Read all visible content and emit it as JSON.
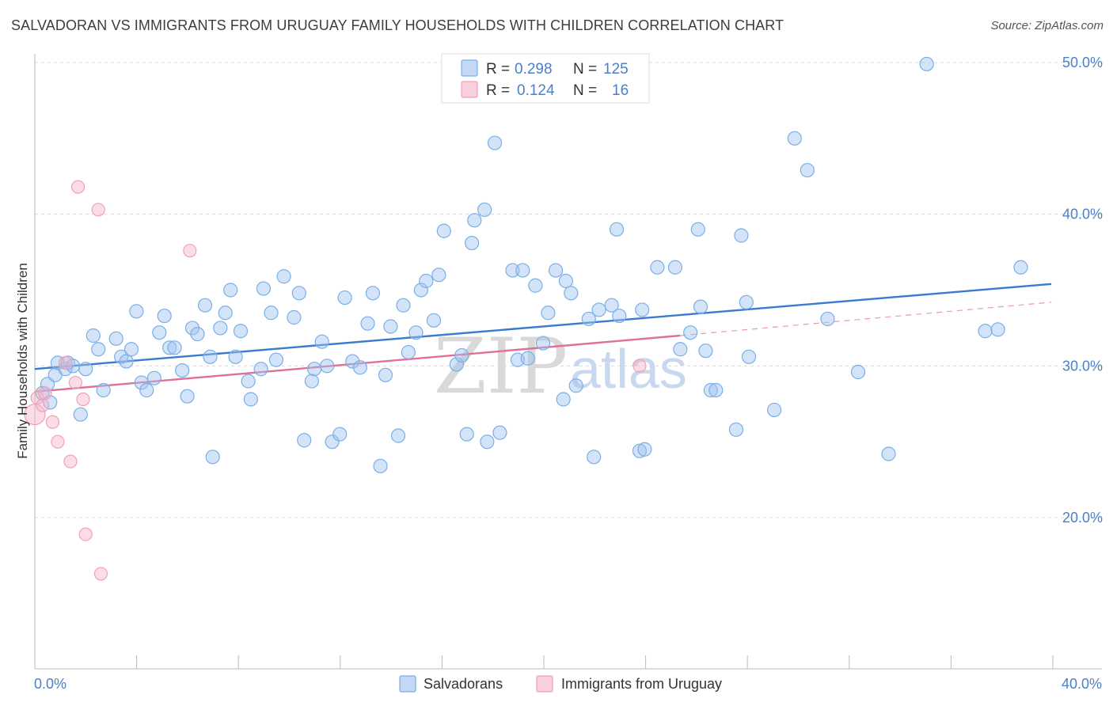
{
  "header": {
    "title": "SALVADORAN VS IMMIGRANTS FROM URUGUAY FAMILY HOUSEHOLDS WITH CHILDREN CORRELATION CHART",
    "source": "Source: ZipAtlas.com"
  },
  "watermark": {
    "zip": "ZIP",
    "atlas": "atlas"
  },
  "legend_top": [
    {
      "r_label": "R = ",
      "r_value": "0.298",
      "n_label": "N = ",
      "n_value": "125",
      "color": "#7aaee8"
    },
    {
      "r_label": "R = ",
      "r_value": "0.124",
      "n_label": "N = ",
      "n_value": "16",
      "color": "#f0a0b8"
    }
  ],
  "chart_data": {
    "type": "scatter",
    "title": "SALVADORAN VS IMMIGRANTS FROM URUGUAY FAMILY HOUSEHOLDS WITH CHILDREN CORRELATION CHART",
    "xlabel": "",
    "ylabel": "Family Households with Children",
    "xlim": [
      0,
      40
    ],
    "ylim": [
      10,
      52
    ],
    "x_tick_labels": [
      "0.0%",
      "40.0%"
    ],
    "y_ticks": [
      20,
      30,
      40,
      50
    ],
    "y_tick_labels": [
      "20.0%",
      "30.0%",
      "40.0%",
      "50.0%"
    ],
    "grid": true,
    "legend_position": "top-center",
    "series": [
      {
        "name": "Salvadorans",
        "color": "#7aaee8",
        "trend": {
          "x": [
            0,
            40
          ],
          "y": [
            29.8,
            35.4
          ]
        },
        "points": [
          [
            0.3,
            28.2
          ],
          [
            0.5,
            28.8
          ],
          [
            0.6,
            27.6
          ],
          [
            0.8,
            29.4
          ],
          [
            0.9,
            30.2
          ],
          [
            1.2,
            29.8
          ],
          [
            1.3,
            30.2
          ],
          [
            1.5,
            30.0
          ],
          [
            1.8,
            26.8
          ],
          [
            2.0,
            29.8
          ],
          [
            2.3,
            32.0
          ],
          [
            2.5,
            31.1
          ],
          [
            2.7,
            28.4
          ],
          [
            3.2,
            31.8
          ],
          [
            3.4,
            30.6
          ],
          [
            3.6,
            30.3
          ],
          [
            3.8,
            31.1
          ],
          [
            4.0,
            33.6
          ],
          [
            4.2,
            28.9
          ],
          [
            4.4,
            28.4
          ],
          [
            4.7,
            29.2
          ],
          [
            4.9,
            32.2
          ],
          [
            5.1,
            33.3
          ],
          [
            5.3,
            31.2
          ],
          [
            5.5,
            31.2
          ],
          [
            5.8,
            29.7
          ],
          [
            6.0,
            28.0
          ],
          [
            6.2,
            32.5
          ],
          [
            6.4,
            32.1
          ],
          [
            6.7,
            34.0
          ],
          [
            6.9,
            30.6
          ],
          [
            7.0,
            24.0
          ],
          [
            7.3,
            32.5
          ],
          [
            7.5,
            33.5
          ],
          [
            7.7,
            35.0
          ],
          [
            7.9,
            30.6
          ],
          [
            8.1,
            32.3
          ],
          [
            8.4,
            29.0
          ],
          [
            8.5,
            27.8
          ],
          [
            8.9,
            29.8
          ],
          [
            9.0,
            35.1
          ],
          [
            9.3,
            33.5
          ],
          [
            9.5,
            30.4
          ],
          [
            9.8,
            35.9
          ],
          [
            10.2,
            33.2
          ],
          [
            10.4,
            34.8
          ],
          [
            10.6,
            25.1
          ],
          [
            10.9,
            29.0
          ],
          [
            11.0,
            29.8
          ],
          [
            11.3,
            31.6
          ],
          [
            11.5,
            30.0
          ],
          [
            11.7,
            25.0
          ],
          [
            12.0,
            25.5
          ],
          [
            12.2,
            34.5
          ],
          [
            12.5,
            30.3
          ],
          [
            12.8,
            29.9
          ],
          [
            13.1,
            32.8
          ],
          [
            13.3,
            34.8
          ],
          [
            13.6,
            23.4
          ],
          [
            13.8,
            29.4
          ],
          [
            14.0,
            32.6
          ],
          [
            14.3,
            25.4
          ],
          [
            14.5,
            34.0
          ],
          [
            14.7,
            30.9
          ],
          [
            15.0,
            32.2
          ],
          [
            15.2,
            35.0
          ],
          [
            15.4,
            35.6
          ],
          [
            15.7,
            33.0
          ],
          [
            15.9,
            36.0
          ],
          [
            16.1,
            38.9
          ],
          [
            16.6,
            30.1
          ],
          [
            16.8,
            30.7
          ],
          [
            17.0,
            25.5
          ],
          [
            17.2,
            38.1
          ],
          [
            17.3,
            39.6
          ],
          [
            17.7,
            40.3
          ],
          [
            17.8,
            25.0
          ],
          [
            18.1,
            44.7
          ],
          [
            18.3,
            25.6
          ],
          [
            18.8,
            36.3
          ],
          [
            19.0,
            30.4
          ],
          [
            19.2,
            36.3
          ],
          [
            19.4,
            30.5
          ],
          [
            19.7,
            35.3
          ],
          [
            20.0,
            31.5
          ],
          [
            20.2,
            33.5
          ],
          [
            20.5,
            36.3
          ],
          [
            20.8,
            27.8
          ],
          [
            20.9,
            35.6
          ],
          [
            21.1,
            34.8
          ],
          [
            21.3,
            28.7
          ],
          [
            21.8,
            33.1
          ],
          [
            22.0,
            24.0
          ],
          [
            22.2,
            33.7
          ],
          [
            22.7,
            34.0
          ],
          [
            22.9,
            39.0
          ],
          [
            23.0,
            33.3
          ],
          [
            23.8,
            24.4
          ],
          [
            23.9,
            33.7
          ],
          [
            24.0,
            24.5
          ],
          [
            24.5,
            36.5
          ],
          [
            25.2,
            36.5
          ],
          [
            25.4,
            31.1
          ],
          [
            25.8,
            32.2
          ],
          [
            26.1,
            39.0
          ],
          [
            26.2,
            33.9
          ],
          [
            26.4,
            31.0
          ],
          [
            26.6,
            28.4
          ],
          [
            26.8,
            28.4
          ],
          [
            27.6,
            25.8
          ],
          [
            27.8,
            38.6
          ],
          [
            28.0,
            34.2
          ],
          [
            28.1,
            30.6
          ],
          [
            29.1,
            27.1
          ],
          [
            29.9,
            45.0
          ],
          [
            30.4,
            42.9
          ],
          [
            31.2,
            33.1
          ],
          [
            32.4,
            29.6
          ],
          [
            33.6,
            24.2
          ],
          [
            35.1,
            49.9
          ],
          [
            37.4,
            32.3
          ],
          [
            37.9,
            32.4
          ],
          [
            38.8,
            36.5
          ]
        ]
      },
      {
        "name": "Immigrants from Uruguay",
        "color": "#f0a0b8",
        "trend": {
          "x": [
            0,
            25.4
          ],
          "y": [
            28.3,
            32.0
          ]
        },
        "trend_extension": {
          "x": [
            25.4,
            40
          ],
          "y": [
            32.0,
            34.2
          ]
        },
        "points": [
          [
            0.0,
            26.8
          ],
          [
            0.1,
            27.9
          ],
          [
            0.3,
            27.4
          ],
          [
            0.4,
            28.2
          ],
          [
            0.7,
            26.3
          ],
          [
            0.9,
            25.0
          ],
          [
            1.2,
            30.2
          ],
          [
            1.4,
            23.7
          ],
          [
            1.6,
            28.9
          ],
          [
            1.9,
            27.8
          ],
          [
            1.7,
            41.8
          ],
          [
            2.0,
            18.9
          ],
          [
            2.5,
            40.3
          ],
          [
            2.6,
            16.3
          ],
          [
            6.1,
            37.6
          ],
          [
            23.8,
            30.0
          ]
        ]
      }
    ]
  },
  "bottom_legend": [
    {
      "label": "Salvadorans",
      "color": "#7aaee8"
    },
    {
      "label": "Immigrants from Uruguay",
      "color": "#f0a0b8"
    }
  ]
}
